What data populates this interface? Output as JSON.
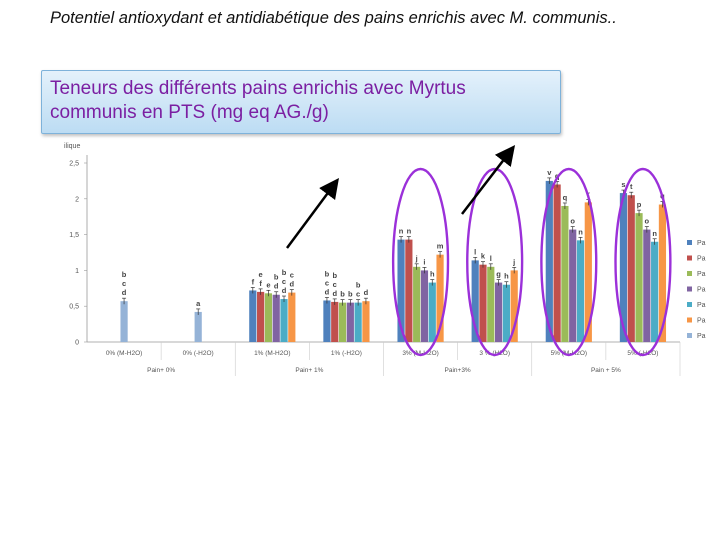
{
  "slide": {
    "title": "Potentiel antioxydant et antidiabétique des pains enrichis avec  M. communis..",
    "callout": "Teneurs des différents pains enrichis avec Myrtus communis en PTS (mg eq AG./g)"
  },
  "chart_data": {
    "type": "bar",
    "ylabel": "ilique",
    "ylim": [
      0,
      2.5
    ],
    "yticks": [
      "0",
      "0,5",
      "1",
      "1,5",
      "2",
      "2,5"
    ],
    "categories": [
      "0% (M-H2O)",
      "0% (-H2O)",
      "1% (M-H2O)",
      "1% (-H2O)",
      "3% (M-H2O)",
      "3 % (H2O)",
      "5% (M-H2O)",
      "5% (-H2O)"
    ],
    "groups": [
      "Pain+ 0%",
      "Pain+ 1%",
      "Pain+3%",
      "Pain + 5%"
    ],
    "legend_position": "right",
    "series": [
      {
        "name": "Pa",
        "color": "#4f81bd",
        "values": [
          null,
          null,
          0.72,
          0.58,
          1.43,
          1.14,
          2.25,
          2.08
        ]
      },
      {
        "name": "Pa",
        "color": "#c0504d",
        "values": [
          null,
          null,
          0.7,
          0.56,
          1.43,
          1.08,
          2.2,
          2.05
        ]
      },
      {
        "name": "Pa",
        "color": "#9bbb59",
        "values": [
          null,
          null,
          0.68,
          0.55,
          1.05,
          1.05,
          1.9,
          1.8
        ]
      },
      {
        "name": "Pa",
        "color": "#8064a2",
        "values": [
          null,
          null,
          0.66,
          0.55,
          1.0,
          0.83,
          1.57,
          1.57
        ]
      },
      {
        "name": "Pa",
        "color": "#4bacc6",
        "values": [
          null,
          null,
          0.6,
          0.55,
          0.83,
          0.8,
          1.42,
          1.4
        ]
      },
      {
        "name": "Pa",
        "color": "#f79646",
        "values": [
          null,
          null,
          0.69,
          0.57,
          1.22,
          1.0,
          1.95,
          1.92
        ]
      },
      {
        "name": "Pa",
        "color": "#95b3d7",
        "values": [
          0.57,
          0.42,
          null,
          null,
          null,
          null,
          null,
          null
        ]
      }
    ],
    "annotations": [
      {
        "category": 0,
        "series": 6,
        "letters": [
          "b",
          "c",
          "d"
        ]
      },
      {
        "category": 1,
        "series": 6,
        "letters": [
          "a"
        ]
      },
      {
        "category": 2,
        "series": 0,
        "letters": [
          "f"
        ]
      },
      {
        "category": 2,
        "series": 1,
        "letters": [
          "e",
          "f"
        ]
      },
      {
        "category": 2,
        "series": 2,
        "letters": [
          "e"
        ]
      },
      {
        "category": 2,
        "series": 3,
        "letters": [
          "b",
          "d"
        ]
      },
      {
        "category": 2,
        "series": 4,
        "letters": [
          "b",
          "c",
          "d"
        ]
      },
      {
        "category": 2,
        "series": 5,
        "letters": [
          "c",
          "d"
        ]
      },
      {
        "category": 3,
        "series": 0,
        "letters": [
          "b",
          "c",
          "d"
        ]
      },
      {
        "category": 3,
        "series": 1,
        "letters": [
          "b",
          "c",
          "d"
        ]
      },
      {
        "category": 3,
        "series": 2,
        "letters": [
          "b"
        ]
      },
      {
        "category": 3,
        "series": 3,
        "letters": [
          "b"
        ]
      },
      {
        "category": 3,
        "series": 4,
        "letters": [
          "b",
          "c"
        ]
      },
      {
        "category": 3,
        "series": 5,
        "letters": [
          "d"
        ]
      },
      {
        "category": 4,
        "series": 0,
        "letters": [
          "n"
        ]
      },
      {
        "category": 4,
        "series": 1,
        "letters": [
          "n"
        ]
      },
      {
        "category": 4,
        "series": 2,
        "letters": [
          "j"
        ]
      },
      {
        "category": 4,
        "series": 3,
        "letters": [
          "i"
        ]
      },
      {
        "category": 4,
        "series": 4,
        "letters": [
          "h"
        ]
      },
      {
        "category": 4,
        "series": 5,
        "letters": [
          "m"
        ]
      },
      {
        "category": 5,
        "series": 0,
        "letters": [
          "l"
        ]
      },
      {
        "category": 5,
        "series": 1,
        "letters": [
          "k"
        ]
      },
      {
        "category": 5,
        "series": 2,
        "letters": [
          "l"
        ]
      },
      {
        "category": 5,
        "series": 3,
        "letters": [
          "g"
        ]
      },
      {
        "category": 5,
        "series": 4,
        "letters": [
          "h"
        ]
      },
      {
        "category": 5,
        "series": 5,
        "letters": [
          "j"
        ]
      },
      {
        "category": 6,
        "series": 0,
        "letters": [
          "v"
        ]
      },
      {
        "category": 6,
        "series": 1,
        "letters": [
          "q"
        ]
      },
      {
        "category": 6,
        "series": 2,
        "letters": [
          "q"
        ]
      },
      {
        "category": 6,
        "series": 3,
        "letters": [
          "o"
        ]
      },
      {
        "category": 6,
        "series": 4,
        "letters": [
          "n"
        ]
      },
      {
        "category": 6,
        "series": 5,
        "letters": [
          "r"
        ]
      },
      {
        "category": 7,
        "series": 0,
        "letters": [
          "s"
        ]
      },
      {
        "category": 7,
        "series": 1,
        "letters": [
          "t"
        ]
      },
      {
        "category": 7,
        "series": 2,
        "letters": [
          "p"
        ]
      },
      {
        "category": 7,
        "series": 3,
        "letters": [
          "o"
        ]
      },
      {
        "category": 7,
        "series": 4,
        "letters": [
          "n"
        ]
      },
      {
        "category": 7,
        "series": 5,
        "letters": [
          "q"
        ]
      }
    ],
    "highlight_color": "#9b30d9",
    "arrow_color": "#000000"
  }
}
